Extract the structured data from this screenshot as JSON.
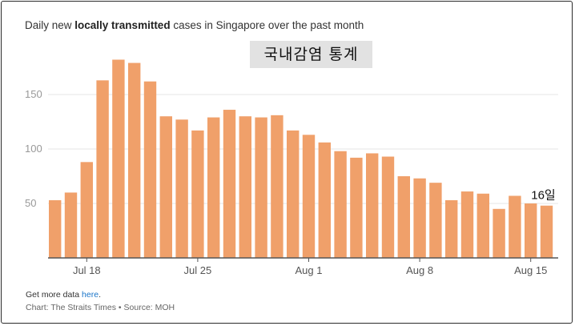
{
  "title": {
    "prefix": "Daily new ",
    "bold": "locally transmitted",
    "suffix": " cases in Singapore over the past month"
  },
  "overlay_label": "국내감염 통계",
  "annotation_last": "16일",
  "footer": {
    "more_prefix": "Get more data ",
    "more_link": "here",
    "more_suffix": ".",
    "source": "Chart: The Straits Times • Source: MOH"
  },
  "colors": {
    "bar": "#f0a06a",
    "grid": "#e6e6e6",
    "axis": "#555555"
  },
  "chart_data": {
    "type": "bar",
    "title": "Daily new locally transmitted cases in Singapore over the past month",
    "x": [
      "Jul 16",
      "Jul 17",
      "Jul 18",
      "Jul 19",
      "Jul 20",
      "Jul 21",
      "Jul 22",
      "Jul 23",
      "Jul 24",
      "Jul 25",
      "Jul 26",
      "Jul 27",
      "Jul 28",
      "Jul 29",
      "Jul 30",
      "Jul 31",
      "Aug 1",
      "Aug 2",
      "Aug 3",
      "Aug 4",
      "Aug 5",
      "Aug 6",
      "Aug 7",
      "Aug 8",
      "Aug 9",
      "Aug 10",
      "Aug 11",
      "Aug 12",
      "Aug 13",
      "Aug 14",
      "Aug 15",
      "Aug 16"
    ],
    "values": [
      53,
      60,
      88,
      163,
      182,
      179,
      162,
      130,
      127,
      117,
      129,
      136,
      130,
      129,
      131,
      117,
      113,
      106,
      98,
      92,
      96,
      93,
      75,
      73,
      69,
      53,
      61,
      59,
      45,
      57,
      50,
      48
    ],
    "x_ticks": [
      {
        "label": "Jul 18",
        "index": 2
      },
      {
        "label": "Jul 25",
        "index": 9
      },
      {
        "label": "Aug 1",
        "index": 16
      },
      {
        "label": "Aug 8",
        "index": 23
      },
      {
        "label": "Aug 15",
        "index": 30
      }
    ],
    "y_ticks": [
      50,
      100,
      150
    ],
    "ylim": [
      0,
      200
    ],
    "grid": true,
    "legend": "none",
    "xlabel": "",
    "ylabel": ""
  }
}
